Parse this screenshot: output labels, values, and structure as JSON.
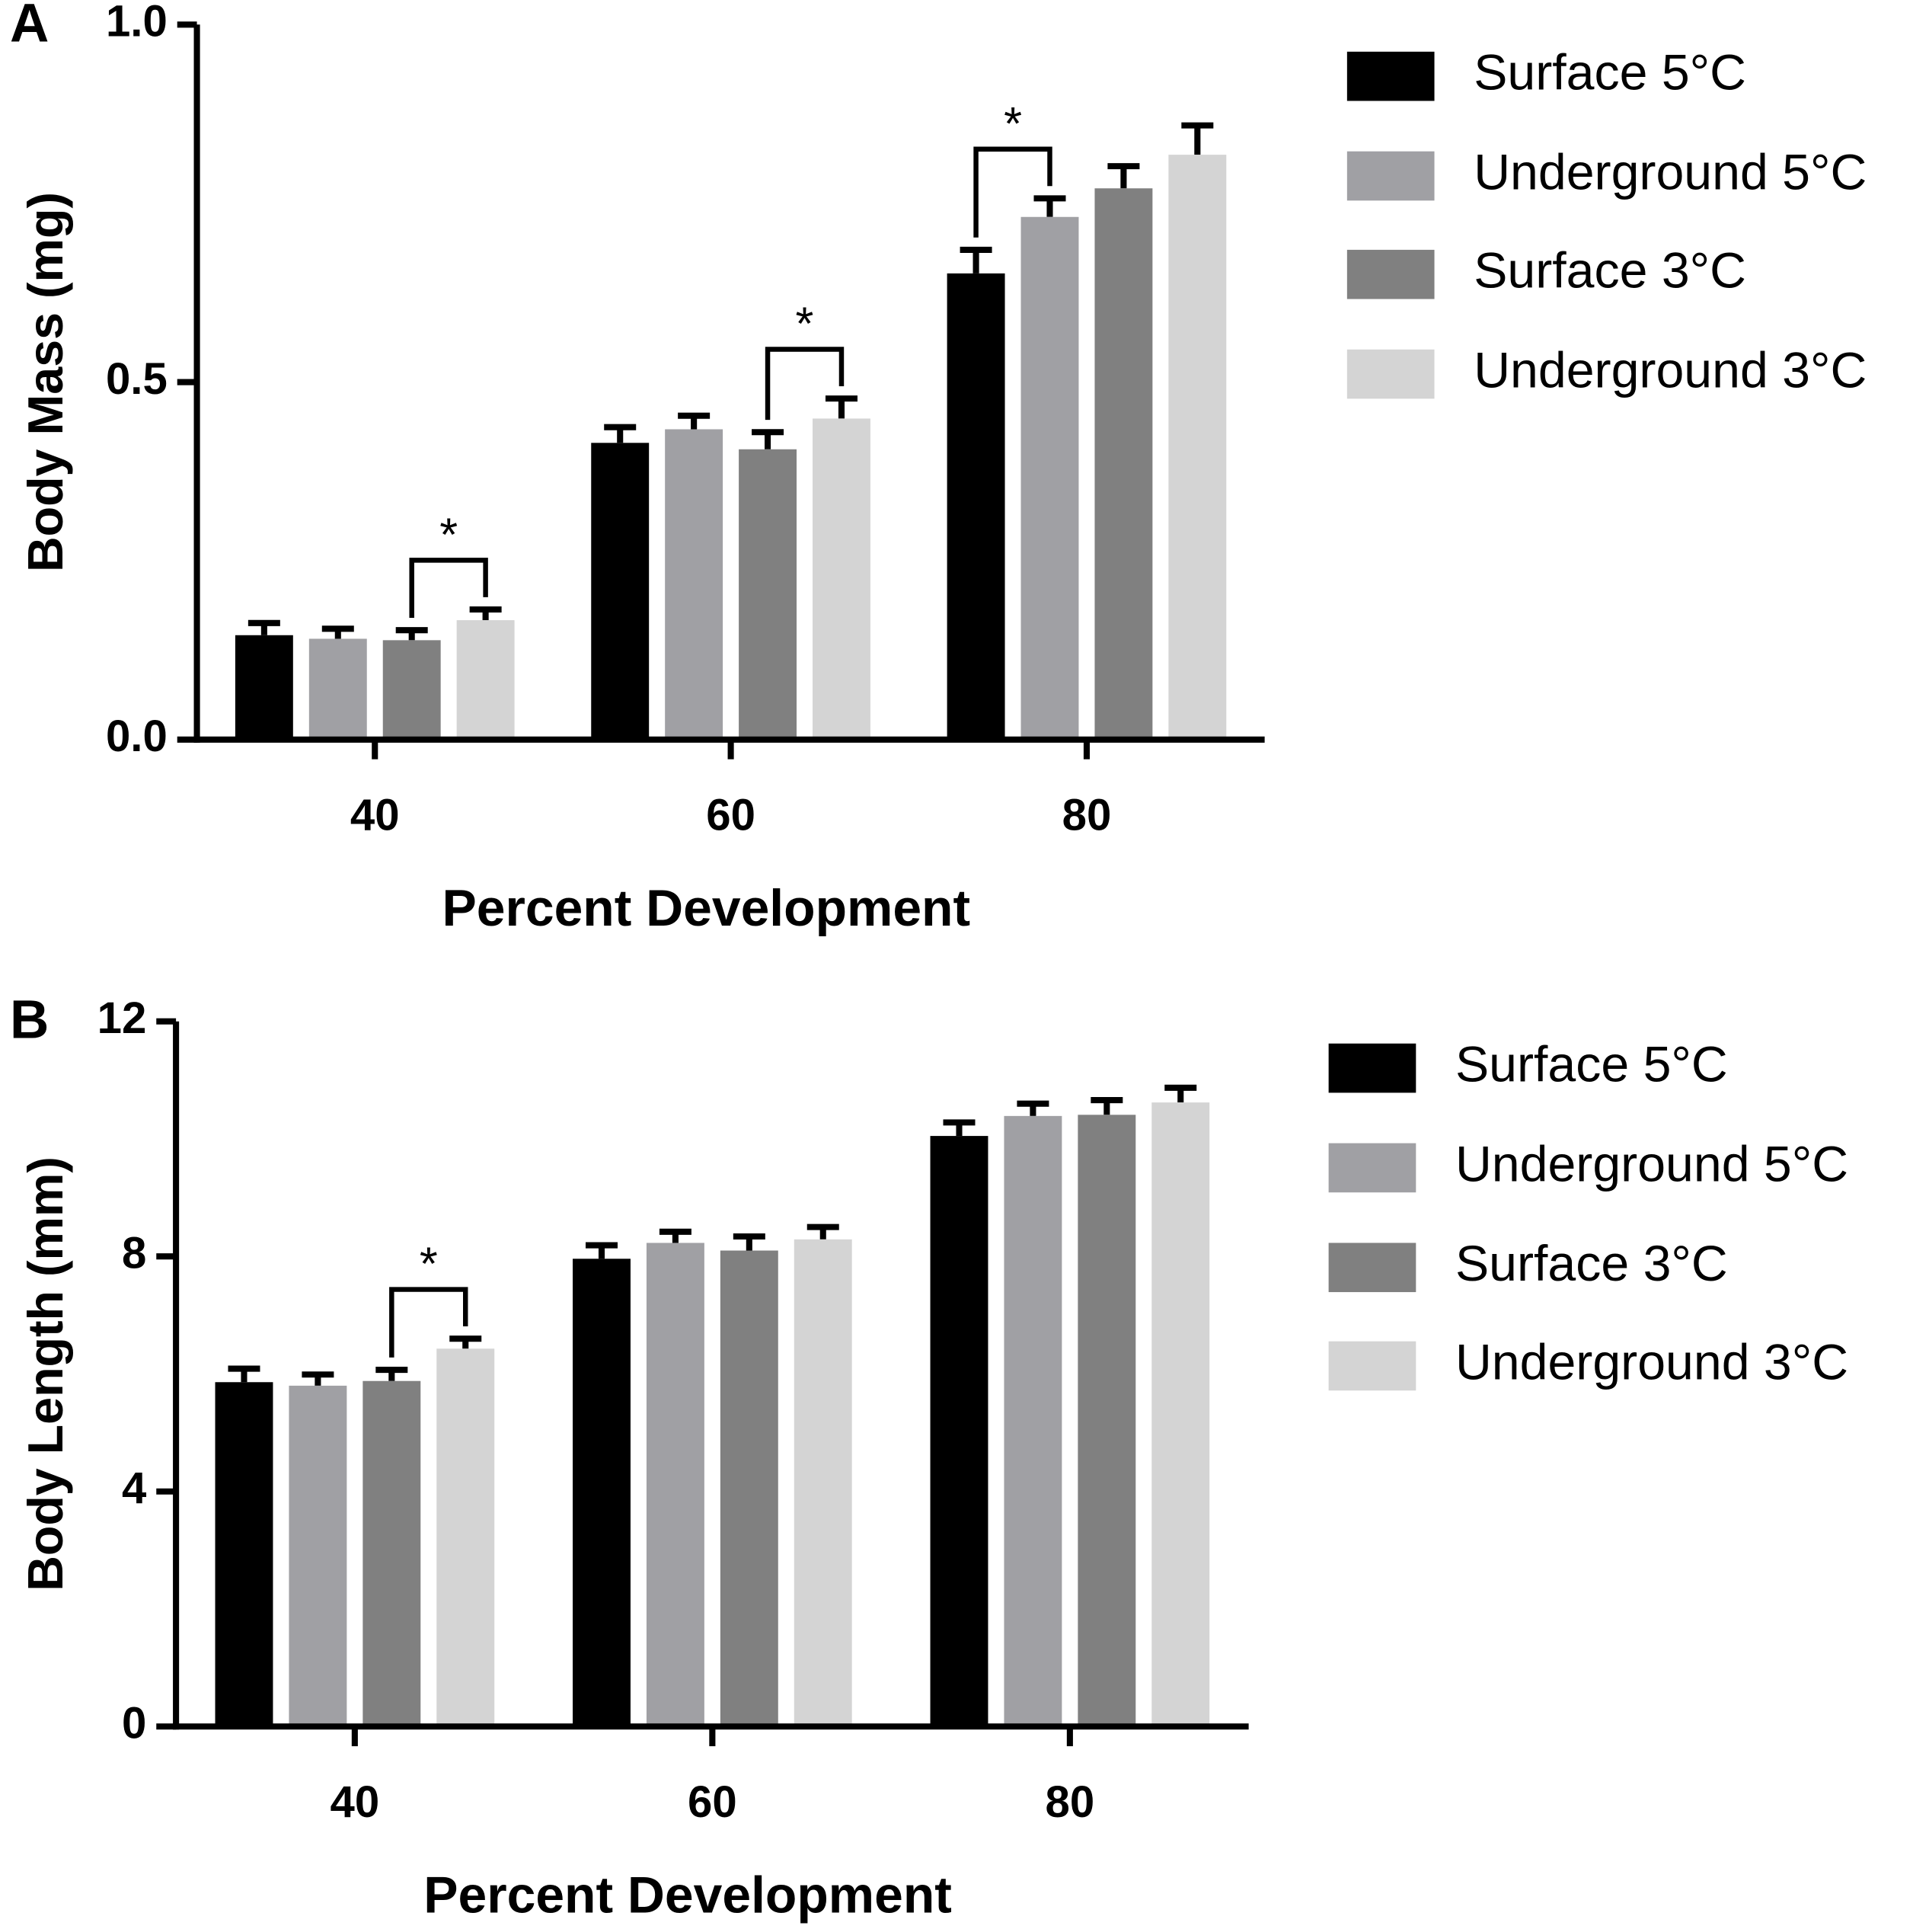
{
  "chart_data": [
    {
      "type": "bar",
      "panel": "A",
      "ylabel": "Body Mass (mg)",
      "xlabel": "Percent Development",
      "categories": [
        "40",
        "60",
        "80"
      ],
      "series": [
        {
          "name": "Surface 5°C",
          "color": "#000000",
          "values": [
            0.146,
            0.415,
            0.652
          ],
          "errors": [
            0.017,
            0.022,
            0.033
          ]
        },
        {
          "name": "Underground 5°C",
          "color": "#a0a0a4",
          "values": [
            0.141,
            0.434,
            0.731
          ],
          "errors": [
            0.014,
            0.019,
            0.026
          ]
        },
        {
          "name": "Surface 3°C",
          "color": "#808080",
          "values": [
            0.139,
            0.406,
            0.771
          ],
          "errors": [
            0.014,
            0.024,
            0.031
          ]
        },
        {
          "name": "Underground 3°C",
          "color": "#d4d4d4",
          "values": [
            0.167,
            0.449,
            0.818
          ],
          "errors": [
            0.015,
            0.028,
            0.041
          ]
        }
      ],
      "ylim": [
        0,
        1
      ],
      "yticks": [
        {
          "value": 0,
          "label": "0.0"
        },
        0.5,
        {
          "value": 1,
          "label": "1.0"
        }
      ],
      "brackets": [
        {
          "category": "40",
          "from": "Surface 3°C",
          "to": "Underground 3°C",
          "label": "*"
        },
        {
          "category": "60",
          "from": "Surface 3°C",
          "to": "Underground 3°C",
          "label": "*"
        },
        {
          "category": "80",
          "from": "Surface 5°C",
          "to": "Underground 5°C",
          "label": "*"
        }
      ]
    },
    {
      "type": "bar",
      "panel": "B",
      "ylabel": "Body Length (mm)",
      "xlabel": "Percent Development",
      "categories": [
        "40",
        "60",
        "80"
      ],
      "series": [
        {
          "name": "Surface 5°C",
          "color": "#000000",
          "values": [
            5.86,
            7.96,
            10.05
          ],
          "errors": [
            0.23,
            0.23,
            0.23
          ]
        },
        {
          "name": "Underground 5°C",
          "color": "#a0a0a4",
          "values": [
            5.8,
            8.23,
            10.39
          ],
          "errors": [
            0.19,
            0.19,
            0.21
          ]
        },
        {
          "name": "Surface 3°C",
          "color": "#808080",
          "values": [
            5.88,
            8.1,
            10.41
          ],
          "errors": [
            0.19,
            0.24,
            0.25
          ]
        },
        {
          "name": "Underground 3°C",
          "color": "#d4d4d4",
          "values": [
            6.43,
            8.29,
            10.62
          ],
          "errors": [
            0.17,
            0.21,
            0.25
          ]
        }
      ],
      "ylim": [
        0,
        12
      ],
      "yticks": [
        0,
        4,
        8,
        12
      ],
      "brackets": [
        {
          "category": "40",
          "from": "Surface 3°C",
          "to": "Underground 3°C",
          "label": "*"
        }
      ]
    }
  ]
}
